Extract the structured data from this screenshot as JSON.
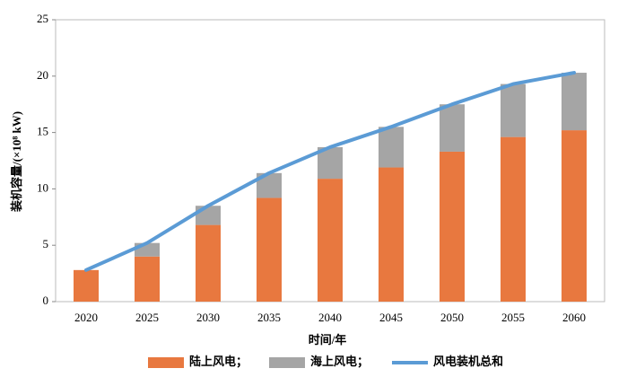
{
  "chart_data": {
    "type": "bar",
    "stacked": true,
    "categories": [
      "2020",
      "2025",
      "2030",
      "2035",
      "2040",
      "2045",
      "2050",
      "2055",
      "2060"
    ],
    "series": [
      {
        "name": "陆上风电；",
        "color": "#e8783f",
        "values": [
          2.8,
          4.0,
          6.8,
          9.2,
          10.9,
          11.9,
          13.3,
          14.6,
          15.2
        ]
      },
      {
        "name": "海上风电；",
        "color": "#a5a5a5",
        "values": [
          0,
          1.2,
          1.7,
          2.2,
          2.8,
          3.6,
          4.2,
          4.7,
          5.1
        ]
      },
      {
        "name": "风电装机总和",
        "type": "line",
        "color": "#5b9bd5",
        "values": [
          2.8,
          5.2,
          8.5,
          11.4,
          13.7,
          15.5,
          17.5,
          19.3,
          20.3
        ]
      }
    ],
    "xlabel": "时间/年",
    "ylabel": "装机容量/(×10⁸ kW)",
    "ylim": [
      0,
      25
    ],
    "yticks": [
      0,
      5,
      10,
      15,
      20,
      25
    ],
    "grid": false,
    "legend": "bottom"
  }
}
